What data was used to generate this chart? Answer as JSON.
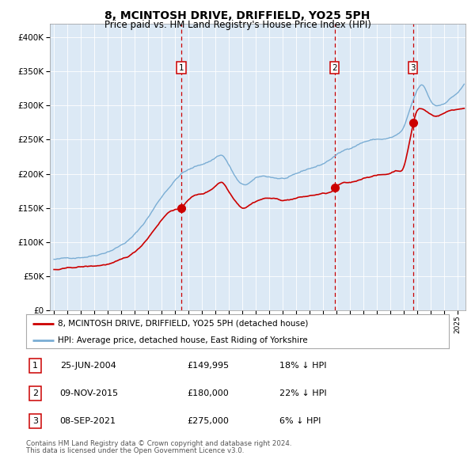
{
  "title": "8, MCINTOSH DRIVE, DRIFFIELD, YO25 5PH",
  "subtitle": "Price paid vs. HM Land Registry's House Price Index (HPI)",
  "bg_color": "#dce9f5",
  "hpi_color": "#7aadd4",
  "price_color": "#cc0000",
  "ylim": [
    0,
    420000
  ],
  "yticks": [
    0,
    50000,
    100000,
    150000,
    200000,
    250000,
    300000,
    350000,
    400000
  ],
  "xlim_start": 1994.7,
  "xlim_end": 2025.6,
  "sale1_date": 2004.48,
  "sale1_price": 149995,
  "sale2_date": 2015.86,
  "sale2_price": 180000,
  "sale3_date": 2021.69,
  "sale3_price": 275000,
  "legend_line1": "8, MCINTOSH DRIVE, DRIFFIELD, YO25 5PH (detached house)",
  "legend_line2": "HPI: Average price, detached house, East Riding of Yorkshire",
  "table_rows": [
    {
      "num": "1",
      "date": "25-JUN-2004",
      "price": "£149,995",
      "hpi": "18% ↓ HPI"
    },
    {
      "num": "2",
      "date": "09-NOV-2015",
      "price": "£180,000",
      "hpi": "22% ↓ HPI"
    },
    {
      "num": "3",
      "date": "08-SEP-2021",
      "price": "£275,000",
      "hpi": "6% ↓ HPI"
    }
  ],
  "footnote1": "Contains HM Land Registry data © Crown copyright and database right 2024.",
  "footnote2": "This data is licensed under the Open Government Licence v3.0.",
  "hpi_key_years": [
    1995,
    1996,
    1997,
    1998,
    1999,
    2000,
    2001,
    2002,
    2003,
    2004,
    2004.5,
    2005,
    2006,
    2007,
    2007.5,
    2008,
    2008.5,
    2009,
    2009.5,
    2010,
    2011,
    2012,
    2013,
    2014,
    2015,
    2016,
    2017,
    2018,
    2019,
    2020,
    2020.5,
    2021,
    2021.5,
    2022,
    2022.3,
    2022.7,
    2023,
    2023.5,
    2024,
    2024.5,
    2025,
    2025.5
  ],
  "hpi_key_vals": [
    75000,
    76000,
    79000,
    83000,
    90000,
    100000,
    115000,
    140000,
    170000,
    195000,
    205000,
    210000,
    218000,
    228000,
    232000,
    218000,
    200000,
    188000,
    190000,
    196000,
    198000,
    196000,
    200000,
    208000,
    215000,
    228000,
    238000,
    248000,
    252000,
    254000,
    258000,
    268000,
    295000,
    320000,
    328000,
    318000,
    305000,
    298000,
    302000,
    310000,
    318000,
    330000
  ],
  "price_key_years": [
    1995,
    1996,
    1997,
    1998,
    1999,
    2000,
    2001,
    2002,
    2003,
    2004,
    2004.48,
    2005,
    2006,
    2007,
    2007.5,
    2008,
    2008.5,
    2009,
    2009.5,
    2010,
    2011,
    2012,
    2013,
    2014,
    2015,
    2015.86,
    2016,
    2017,
    2018,
    2019,
    2020,
    2020.5,
    2021,
    2021.69,
    2022,
    2022.3,
    2022.7,
    2023,
    2023.5,
    2024,
    2024.5,
    2025,
    2025.5
  ],
  "price_key_vals": [
    60000,
    61000,
    63000,
    64000,
    67000,
    72000,
    83000,
    105000,
    132000,
    148000,
    149995,
    162000,
    170000,
    182000,
    188000,
    175000,
    162000,
    153000,
    157000,
    163000,
    168000,
    165000,
    168000,
    171000,
    174000,
    180000,
    183000,
    188000,
    195000,
    200000,
    203000,
    207000,
    213000,
    275000,
    295000,
    298000,
    294000,
    290000,
    288000,
    292000,
    296000,
    298000,
    300000
  ]
}
